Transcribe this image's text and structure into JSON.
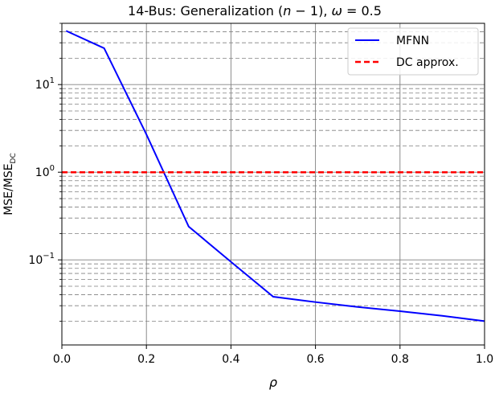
{
  "chart_data": {
    "type": "line",
    "title_parts": [
      "14-Bus: Generalization (",
      "n",
      " − 1), ",
      "ω",
      " = 0.5"
    ],
    "xlabel": "ρ",
    "ylabel_main": "MSE/MSE",
    "ylabel_sub": "DC",
    "xlim": [
      0.0,
      1.0
    ],
    "ylim": [
      0.0107,
      50.0
    ],
    "yscale": "log",
    "grid": true,
    "legend_position": "top-right",
    "x_ticks": [
      {
        "value": 0.0,
        "label": "0.0"
      },
      {
        "value": 0.2,
        "label": "0.2"
      },
      {
        "value": 0.4,
        "label": "0.4"
      },
      {
        "value": 0.6,
        "label": "0.6"
      },
      {
        "value": 0.8,
        "label": "0.8"
      },
      {
        "value": 1.0,
        "label": "1.0"
      }
    ],
    "y_ticks": [
      {
        "value": 10,
        "base": "10",
        "exp": "1"
      },
      {
        "value": 1,
        "base": "10",
        "exp": "0"
      },
      {
        "value": 0.1,
        "base": "10",
        "exp": "−1"
      }
    ],
    "series": [
      {
        "name": "MFNN",
        "color": "#0000ff",
        "style": "solid",
        "x": [
          0.01,
          0.1,
          0.2,
          0.3,
          0.4,
          0.5,
          0.6,
          0.7,
          0.8,
          0.9,
          1.0
        ],
        "y": [
          41.0,
          26.0,
          2.7,
          0.24,
          0.095,
          0.038,
          0.033,
          0.029,
          0.026,
          0.023,
          0.02
        ]
      },
      {
        "name": "DC approx.",
        "color": "#ff0000",
        "style": "dashed",
        "x": [
          0.0,
          1.0
        ],
        "y": [
          1.0,
          1.0
        ]
      }
    ]
  }
}
